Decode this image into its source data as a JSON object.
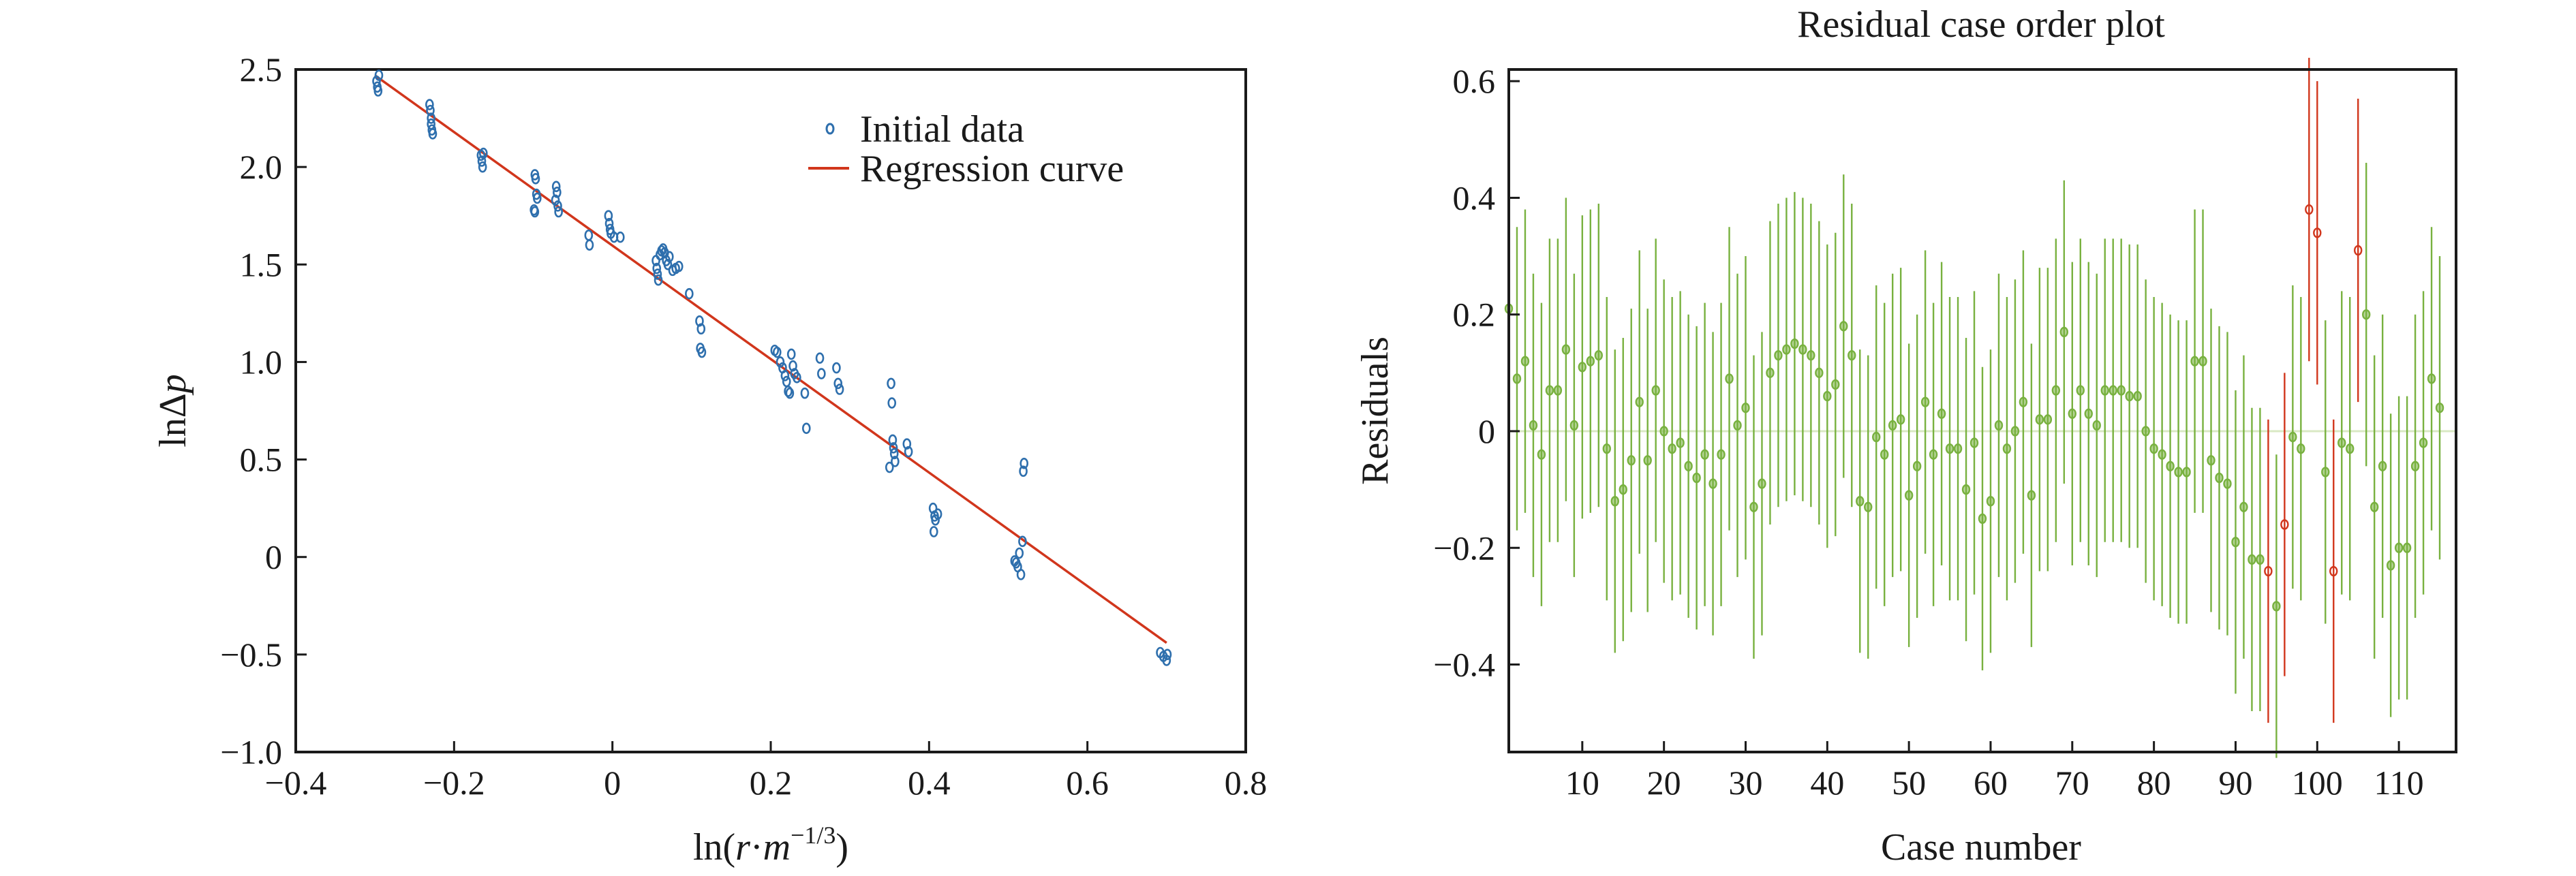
{
  "chart_data": [
    {
      "type": "scatter",
      "title": "",
      "xlabel": "ln(r·m^(−1/3))",
      "ylabel": "lnΔp",
      "xlabel_parts": [
        "ln(",
        "r",
        "·",
        "m",
        "−1/3",
        ")"
      ],
      "ylabel_parts": [
        "lnΔ",
        "p"
      ],
      "xlim": [
        -0.4,
        0.8
      ],
      "ylim": [
        -1.0,
        2.5
      ],
      "xticks": [
        -0.4,
        -0.2,
        0,
        0.2,
        0.4,
        0.6,
        0.8
      ],
      "xtick_labels": [
        "−0.4",
        "−0.2",
        "0",
        "0.2",
        "0.4",
        "0.6",
        "0.8"
      ],
      "yticks": [
        -1.0,
        -0.5,
        0,
        0.5,
        1.0,
        1.5,
        2.0,
        2.5
      ],
      "ytick_labels": [
        "−1.0",
        "−0.5",
        "0",
        "0.5",
        "1.0",
        "1.5",
        "2.0",
        "2.5"
      ],
      "legend_position": "top-right",
      "grid": false,
      "series": [
        {
          "name": "Initial data",
          "kind": "points",
          "color": "#2e6fad",
          "points": [
            [
              -0.298,
              2.44
            ],
            [
              -0.297,
              2.41
            ],
            [
              -0.296,
              2.39
            ],
            [
              -0.295,
              2.47
            ],
            [
              -0.231,
              2.32
            ],
            [
              -0.23,
              2.29
            ],
            [
              -0.229,
              2.25
            ],
            [
              -0.229,
              2.22
            ],
            [
              -0.228,
              2.19
            ],
            [
              -0.227,
              2.17
            ],
            [
              -0.166,
              2.06
            ],
            [
              -0.165,
              2.03
            ],
            [
              -0.164,
              2.0
            ],
            [
              -0.163,
              2.07
            ],
            [
              -0.098,
              1.96
            ],
            [
              -0.097,
              1.94
            ],
            [
              -0.096,
              1.86
            ],
            [
              -0.095,
              1.84
            ],
            [
              -0.099,
              1.78
            ],
            [
              -0.098,
              1.77
            ],
            [
              -0.071,
              1.9
            ],
            [
              -0.07,
              1.87
            ],
            [
              -0.069,
              1.8
            ],
            [
              -0.068,
              1.77
            ],
            [
              -0.072,
              1.83
            ],
            [
              -0.03,
              1.65
            ],
            [
              -0.029,
              1.6
            ],
            [
              -0.005,
              1.75
            ],
            [
              -0.004,
              1.71
            ],
            [
              -0.003,
              1.68
            ],
            [
              -0.002,
              1.66
            ],
            [
              0.002,
              1.64
            ],
            [
              0.01,
              1.64
            ],
            [
              0.055,
              1.52
            ],
            [
              0.056,
              1.48
            ],
            [
              0.057,
              1.45
            ],
            [
              0.058,
              1.42
            ],
            [
              0.06,
              1.55
            ],
            [
              0.062,
              1.57
            ],
            [
              0.064,
              1.58
            ],
            [
              0.066,
              1.56
            ],
            [
              0.068,
              1.52
            ],
            [
              0.07,
              1.5
            ],
            [
              0.072,
              1.54
            ],
            [
              0.076,
              1.47
            ],
            [
              0.08,
              1.48
            ],
            [
              0.084,
              1.49
            ],
            [
              0.097,
              1.35
            ],
            [
              0.11,
              1.21
            ],
            [
              0.112,
              1.17
            ],
            [
              0.111,
              1.07
            ],
            [
              0.113,
              1.05
            ],
            [
              0.205,
              1.06
            ],
            [
              0.208,
              1.05
            ],
            [
              0.212,
              1.0
            ],
            [
              0.215,
              0.97
            ],
            [
              0.218,
              0.93
            ],
            [
              0.22,
              0.9
            ],
            [
              0.222,
              0.85
            ],
            [
              0.224,
              0.84
            ],
            [
              0.226,
              1.04
            ],
            [
              0.228,
              0.98
            ],
            [
              0.23,
              0.94
            ],
            [
              0.233,
              0.92
            ],
            [
              0.243,
              0.84
            ],
            [
              0.245,
              0.66
            ],
            [
              0.262,
              1.02
            ],
            [
              0.264,
              0.94
            ],
            [
              0.283,
              0.97
            ],
            [
              0.285,
              0.89
            ],
            [
              0.287,
              0.86
            ],
            [
              0.352,
              0.89
            ],
            [
              0.353,
              0.79
            ],
            [
              0.354,
              0.6
            ],
            [
              0.355,
              0.56
            ],
            [
              0.356,
              0.53
            ],
            [
              0.357,
              0.49
            ],
            [
              0.35,
              0.46
            ],
            [
              0.372,
              0.58
            ],
            [
              0.374,
              0.54
            ],
            [
              0.405,
              0.25
            ],
            [
              0.407,
              0.21
            ],
            [
              0.408,
              0.19
            ],
            [
              0.406,
              0.13
            ],
            [
              0.411,
              0.22
            ],
            [
              0.508,
              -0.02
            ],
            [
              0.51,
              -0.03
            ],
            [
              0.512,
              -0.05
            ],
            [
              0.514,
              0.02
            ],
            [
              0.516,
              -0.09
            ],
            [
              0.518,
              0.08
            ],
            [
              0.519,
              0.44
            ],
            [
              0.52,
              0.48
            ],
            [
              0.692,
              -0.49
            ],
            [
              0.696,
              -0.51
            ],
            [
              0.7,
              -0.53
            ],
            [
              0.701,
              -0.5
            ]
          ]
        },
        {
          "name": "Regression curve",
          "kind": "line",
          "color": "#d1361c",
          "x": [
            -0.3,
            0.7
          ],
          "y": [
            2.47,
            -0.44
          ]
        }
      ]
    },
    {
      "type": "scatter",
      "title": "Residual case order plot",
      "xlabel": "Case number",
      "ylabel": "Residuals",
      "xlim": [
        1,
        117
      ],
      "ylim": [
        -0.55,
        0.62
      ],
      "xticks": [
        10,
        20,
        30,
        40,
        50,
        60,
        70,
        80,
        90,
        100,
        110
      ],
      "xtick_labels": [
        "10",
        "20",
        "30",
        "40",
        "50",
        "60",
        "70",
        "80",
        "90",
        "100",
        "110"
      ],
      "yticks": [
        -0.4,
        -0.2,
        0,
        0.2,
        0.4,
        0.6
      ],
      "ytick_labels": [
        "−0.4",
        "−0.2",
        "0",
        "0.2",
        "0.4",
        "0.6"
      ],
      "grid": false,
      "zero_line": true,
      "error_half_width": 0.26,
      "colors": {
        "normal": "#78b13f",
        "outlier": "#d1361c",
        "zero_line": "#d9e8c4"
      },
      "residuals": [
        0.21,
        0.09,
        0.12,
        0.01,
        -0.04,
        0.07,
        0.07,
        0.14,
        0.01,
        0.11,
        0.12,
        0.13,
        -0.03,
        -0.12,
        -0.1,
        -0.05,
        0.05,
        -0.05,
        0.07,
        0.0,
        -0.03,
        -0.02,
        -0.06,
        -0.08,
        -0.04,
        -0.09,
        -0.04,
        0.09,
        0.01,
        0.04,
        -0.13,
        -0.09,
        0.1,
        0.13,
        0.14,
        0.15,
        0.14,
        0.13,
        0.1,
        0.06,
        0.08,
        0.18,
        0.13,
        -0.12,
        -0.13,
        -0.01,
        -0.04,
        0.01,
        0.02,
        -0.11,
        -0.06,
        0.05,
        -0.04,
        0.03,
        -0.03,
        -0.03,
        -0.1,
        -0.02,
        -0.15,
        -0.12,
        0.01,
        -0.03,
        0.0,
        0.05,
        -0.11,
        0.02,
        0.02,
        0.07,
        0.17,
        0.03,
        0.07,
        0.03,
        0.01,
        0.07,
        0.07,
        0.07,
        0.06,
        0.06,
        0.0,
        -0.03,
        -0.04,
        -0.06,
        -0.07,
        -0.07,
        0.12,
        0.12,
        -0.05,
        -0.08,
        -0.09,
        -0.19,
        -0.13,
        -0.22,
        -0.22,
        -0.24,
        -0.3,
        -0.16,
        -0.01,
        -0.03,
        0.38,
        0.34,
        -0.07,
        -0.24,
        -0.02,
        -0.03,
        0.31,
        0.2,
        -0.13,
        -0.06,
        -0.23,
        -0.2,
        -0.2,
        -0.06,
        -0.02,
        0.09,
        0.04
      ],
      "outlier_cases": [
        94,
        96,
        99,
        100,
        102,
        105
      ]
    }
  ]
}
